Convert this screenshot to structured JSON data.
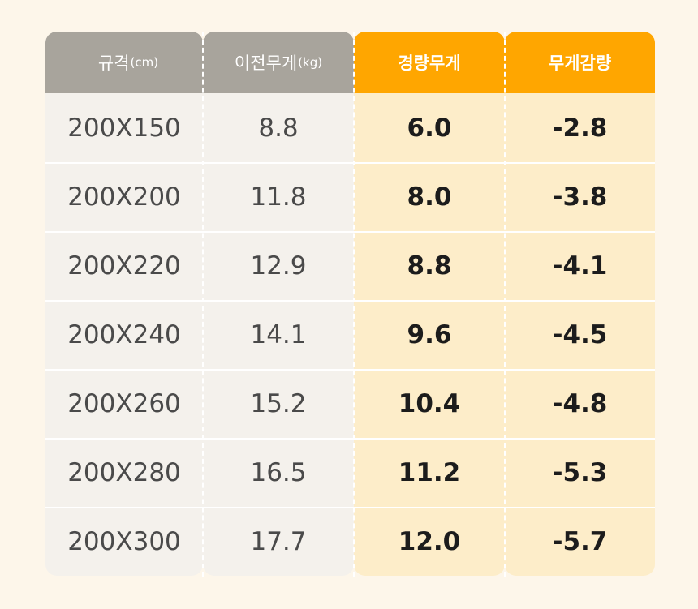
{
  "header": {
    "spec": "규격",
    "spec_unit": "(cm)",
    "prev_weight": "이전무게",
    "prev_unit": "(kg)",
    "light_weight": "경량무게",
    "weight_reduction": "무게감량"
  },
  "rows": [
    {
      "spec": "200X150",
      "prev": "8.8",
      "light": "6.0",
      "diff": "-2.8"
    },
    {
      "spec": "200X200",
      "prev": "11.8",
      "light": "8.0",
      "diff": "-3.8"
    },
    {
      "spec": "200X220",
      "prev": "12.9",
      "light": "8.8",
      "diff": "-4.1"
    },
    {
      "spec": "200X240",
      "prev": "14.1",
      "light": "9.6",
      "diff": "-4.5"
    },
    {
      "spec": "200X260",
      "prev": "15.2",
      "light": "10.4",
      "diff": "-4.8"
    },
    {
      "spec": "200X280",
      "prev": "16.5",
      "light": "11.2",
      "diff": "-5.3"
    },
    {
      "spec": "200X300",
      "prev": "17.7",
      "light": "12.0",
      "diff": "-5.7"
    }
  ],
  "colors": {
    "page_background": "#fdf6ea",
    "gray_header": "#a8a49c",
    "orange_header": "#ffa600",
    "gray_body": "#f4f1ec",
    "orange_body": "#fdedc9"
  }
}
